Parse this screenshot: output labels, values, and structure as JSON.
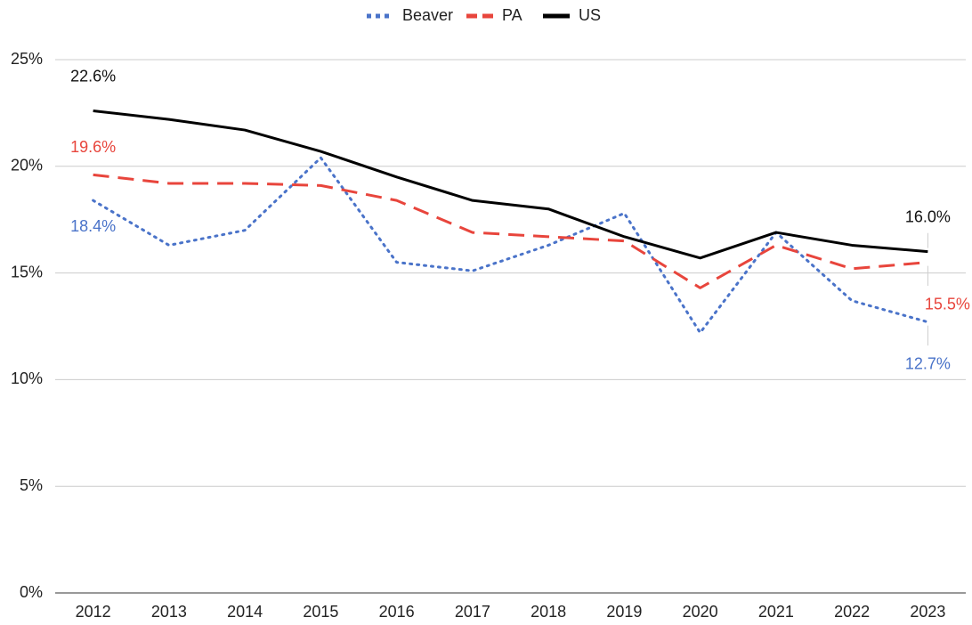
{
  "chart_data": {
    "type": "line",
    "categories": [
      "2012",
      "2013",
      "2014",
      "2015",
      "2016",
      "2017",
      "2018",
      "2019",
      "2020",
      "2021",
      "2022",
      "2023"
    ],
    "series": [
      {
        "name": "Beaver",
        "color": "#4a73c9",
        "dash": "dotted",
        "values": [
          18.4,
          16.3,
          17.0,
          20.4,
          15.5,
          15.1,
          16.3,
          17.8,
          12.2,
          16.9,
          13.7,
          12.7
        ],
        "value_labels": [
          "18.4%",
          null,
          null,
          null,
          null,
          null,
          null,
          null,
          null,
          null,
          null,
          "12.7%"
        ]
      },
      {
        "name": "PA",
        "color": "#e8453c",
        "dash": "dashed",
        "values": [
          19.6,
          19.2,
          19.2,
          19.1,
          18.4,
          16.9,
          16.7,
          16.5,
          14.3,
          16.3,
          15.2,
          15.5
        ],
        "value_labels": [
          "19.6%",
          null,
          null,
          null,
          null,
          null,
          null,
          null,
          null,
          null,
          null,
          "15.5%"
        ]
      },
      {
        "name": "US",
        "color": "#000000",
        "dash": "solid",
        "values": [
          22.6,
          22.2,
          21.7,
          20.7,
          19.5,
          18.4,
          18.0,
          16.7,
          15.7,
          16.9,
          16.3,
          16.0
        ],
        "value_labels": [
          "22.6%",
          null,
          null,
          null,
          null,
          null,
          null,
          null,
          null,
          null,
          null,
          "16.0%"
        ]
      }
    ],
    "ylim": [
      0,
      25
    ],
    "yticks": [
      {
        "value": 0,
        "label": "0%"
      },
      {
        "value": 5,
        "label": "5%"
      },
      {
        "value": 10,
        "label": "10%"
      },
      {
        "value": 15,
        "label": "15%"
      },
      {
        "value": 20,
        "label": "20%"
      },
      {
        "value": 25,
        "label": "25%"
      }
    ],
    "grid": true,
    "legend": "top"
  }
}
